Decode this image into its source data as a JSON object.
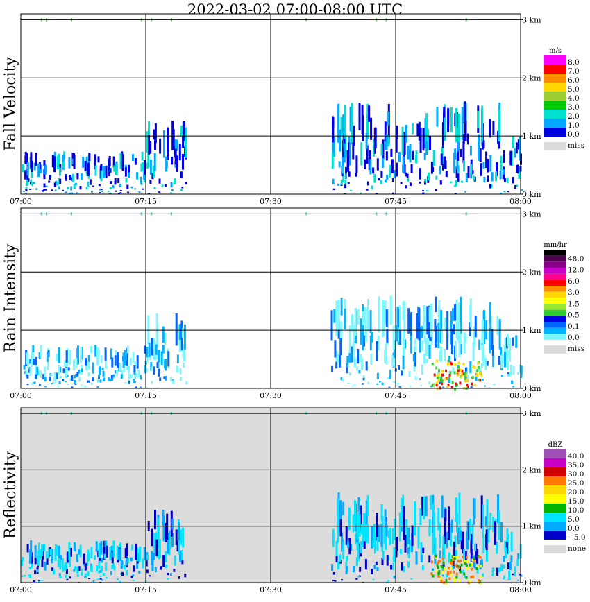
{
  "title": "2022-03-02   07:00-08:00 UTC",
  "chart_data": [
    {
      "type": "heatmap",
      "name": "Fall Velocity",
      "ylabel": "Fall Velocity",
      "x_ticks": [
        "07:00",
        "07:15",
        "07:30",
        "07:45",
        "08:00"
      ],
      "y_ticks": [
        "0 km",
        "1 km",
        "2 km",
        "3 km"
      ],
      "xlim": [
        "07:00",
        "08:00"
      ],
      "ylim_km": [
        0,
        3.1
      ],
      "background": "#ffffff",
      "legend": {
        "unit": "m/s",
        "labels": [
          "8.0",
          "7.0",
          "6.0",
          "5.0",
          "4.0",
          "3.0",
          "2.0",
          "1.0",
          "0.0"
        ],
        "colors": [
          "#ff00ff",
          "#ff0000",
          "#ff8c00",
          "#ffd700",
          "#9acd32",
          "#00c800",
          "#00e0d0",
          "#00a8ff",
          "#0000e0"
        ],
        "missing_label": "miss",
        "missing_color": "#dcdcdc"
      }
    },
    {
      "type": "heatmap",
      "name": "Rain Intensity",
      "ylabel": "Rain Intensity",
      "x_ticks": [
        "07:00",
        "07:15",
        "07:30",
        "07:45",
        "08:00"
      ],
      "y_ticks": [
        "0 km",
        "1 km",
        "2 km",
        "3 km"
      ],
      "xlim": [
        "07:00",
        "08:00"
      ],
      "ylim_km": [
        0,
        3.1
      ],
      "background": "#ffffff",
      "legend": {
        "unit": "mm/hr",
        "labels": [
          "48.0",
          "12.0",
          "6.0",
          "3.0",
          "1.5",
          "0.5",
          "0.1",
          "0.0"
        ],
        "colors": [
          "#000000",
          "#500050",
          "#8b008b",
          "#c800c8",
          "#ff0090",
          "#ff0000",
          "#ff8c00",
          "#ffd700",
          "#ffff00",
          "#9be62e",
          "#32cd32",
          "#0000e0",
          "#0064ff",
          "#00b4ff",
          "#7ff7ff"
        ],
        "missing_label": "miss",
        "missing_color": "#dcdcdc"
      }
    },
    {
      "type": "heatmap",
      "name": "Reflectivity",
      "ylabel": "Reflectivity",
      "x_ticks": [
        "07:00",
        "07:15",
        "07:30",
        "07:45",
        "08:00"
      ],
      "y_ticks": [
        "0 km",
        "1 km",
        "2 km",
        "3 km"
      ],
      "xlim": [
        "07:00",
        "08:00"
      ],
      "ylim_km": [
        0,
        3.1
      ],
      "background": "#dcdcdc",
      "legend": {
        "unit": "dBZ",
        "labels": [
          "40.0",
          "35.0",
          "30.0",
          "25.0",
          "20.0",
          "15.0",
          "10.0",
          "5.0",
          "0.0",
          "−5.0"
        ],
        "colors": [
          "#a050b4",
          "#c800c8",
          "#d20000",
          "#ff7800",
          "#ffd700",
          "#ffff00",
          "#00b400",
          "#00e6ff",
          "#00aaff",
          "#0000c8"
        ],
        "missing_label": "none",
        "missing_color": "#dcdcdc"
      }
    }
  ]
}
